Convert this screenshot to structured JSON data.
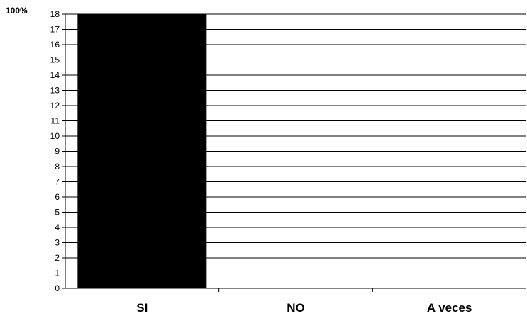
{
  "chart_data": {
    "type": "bar",
    "categories": [
      "SI",
      "NO",
      "A veces"
    ],
    "values": [
      18,
      0,
      0
    ],
    "ylim": [
      0,
      18
    ],
    "yticks": [
      0,
      1,
      2,
      3,
      4,
      5,
      6,
      7,
      8,
      9,
      10,
      11,
      12,
      13,
      14,
      15,
      16,
      17,
      18
    ],
    "annotations": [
      "100%"
    ],
    "grid": true,
    "legend": "none",
    "bar_color": "#000000",
    "grid_color": "#000000"
  }
}
